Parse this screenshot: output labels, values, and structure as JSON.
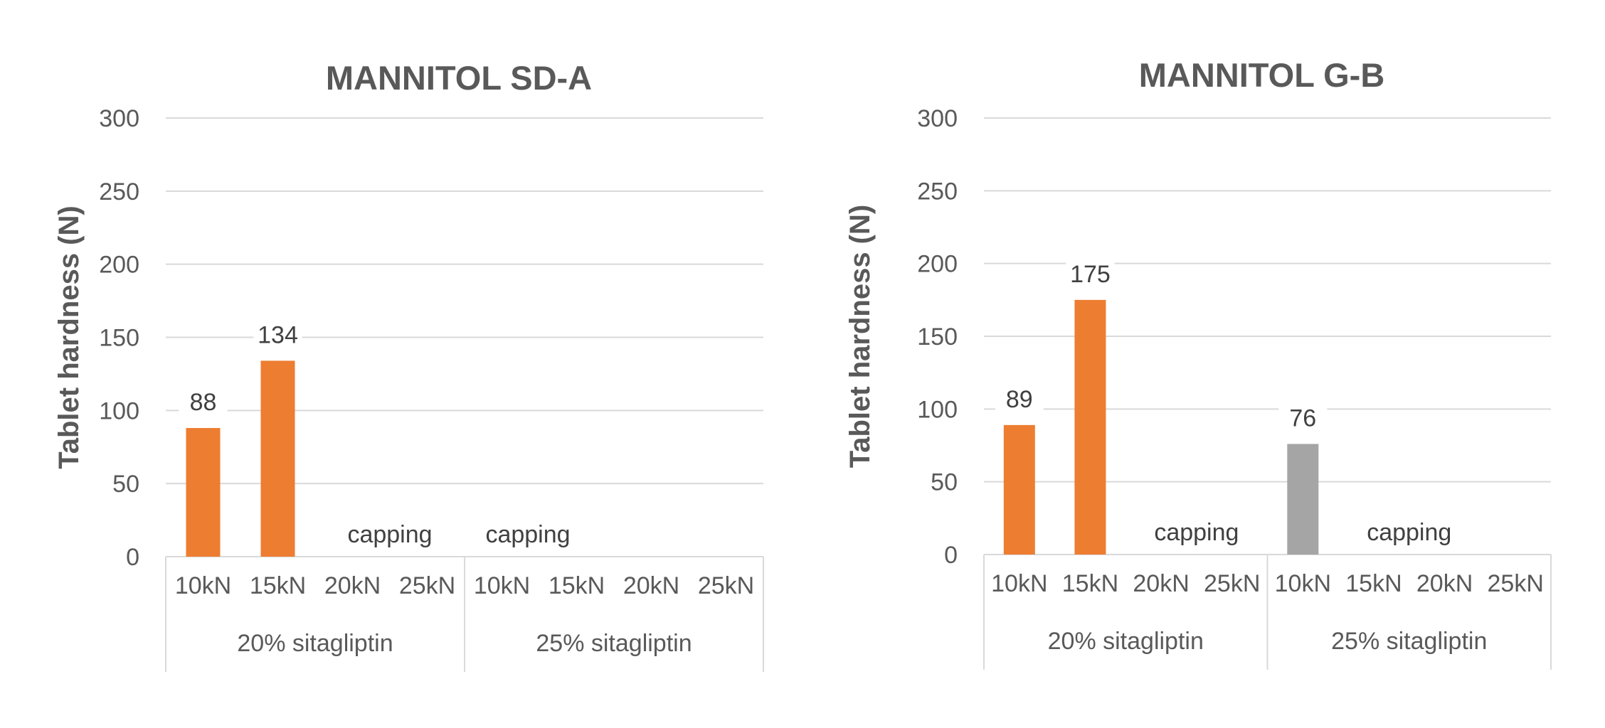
{
  "chart_data": [
    {
      "type": "bar",
      "title": "MANNITOL SD-A",
      "ylabel": "Tablet hardness (N)",
      "xlabel": "",
      "ylim": [
        0,
        300
      ],
      "yticks": [
        0,
        50,
        100,
        150,
        200,
        250,
        300
      ],
      "grid": true,
      "groups": [
        {
          "label": "20% sitagliptin",
          "categories": [
            "10kN",
            "15kN",
            "20kN",
            "25kN"
          ]
        },
        {
          "label": "25% sitagliptin",
          "categories": [
            "10kN",
            "15kN",
            "20kN",
            "25kN"
          ]
        }
      ],
      "values": [
        88,
        134,
        null,
        null,
        null,
        null,
        null,
        null
      ],
      "data_labels": [
        "88",
        "134",
        "",
        "",
        "",
        "",
        "",
        ""
      ],
      "bar_colors": [
        "#ED7D31",
        "#ED7D31",
        "#ED7D31",
        "#ED7D31",
        "#A5A5A5",
        "#A5A5A5",
        "#A5A5A5",
        "#A5A5A5"
      ],
      "annotations": [
        {
          "text": "capping",
          "group": "20% sitagliptin",
          "categories": [
            "20kN",
            "25kN"
          ]
        },
        {
          "text": "capping",
          "group": "25% sitagliptin",
          "categories": [
            "10kN",
            "15kN"
          ]
        }
      ]
    },
    {
      "type": "bar",
      "title": "MANNITOL G-B",
      "ylabel": "Tablet hardness (N)",
      "xlabel": "",
      "ylim": [
        0,
        300
      ],
      "yticks": [
        0,
        50,
        100,
        150,
        200,
        250,
        300
      ],
      "grid": true,
      "groups": [
        {
          "label": "20% sitagliptin",
          "categories": [
            "10kN",
            "15kN",
            "20kN",
            "25kN"
          ]
        },
        {
          "label": "25% sitagliptin",
          "categories": [
            "10kN",
            "15kN",
            "20kN",
            "25kN"
          ]
        }
      ],
      "values": [
        89,
        175,
        null,
        null,
        76,
        null,
        null,
        null
      ],
      "data_labels": [
        "89",
        "175",
        "",
        "",
        "76",
        "",
        "",
        ""
      ],
      "bar_colors": [
        "#ED7D31",
        "#ED7D31",
        "#ED7D31",
        "#ED7D31",
        "#A5A5A5",
        "#A5A5A5",
        "#A5A5A5",
        "#A5A5A5"
      ],
      "annotations": [
        {
          "text": "capping",
          "group": "20% sitagliptin",
          "categories": [
            "20kN",
            "25kN"
          ]
        },
        {
          "text": "capping",
          "group": "25% sitagliptin",
          "categories": [
            "15kN",
            "20kN"
          ]
        }
      ]
    }
  ]
}
